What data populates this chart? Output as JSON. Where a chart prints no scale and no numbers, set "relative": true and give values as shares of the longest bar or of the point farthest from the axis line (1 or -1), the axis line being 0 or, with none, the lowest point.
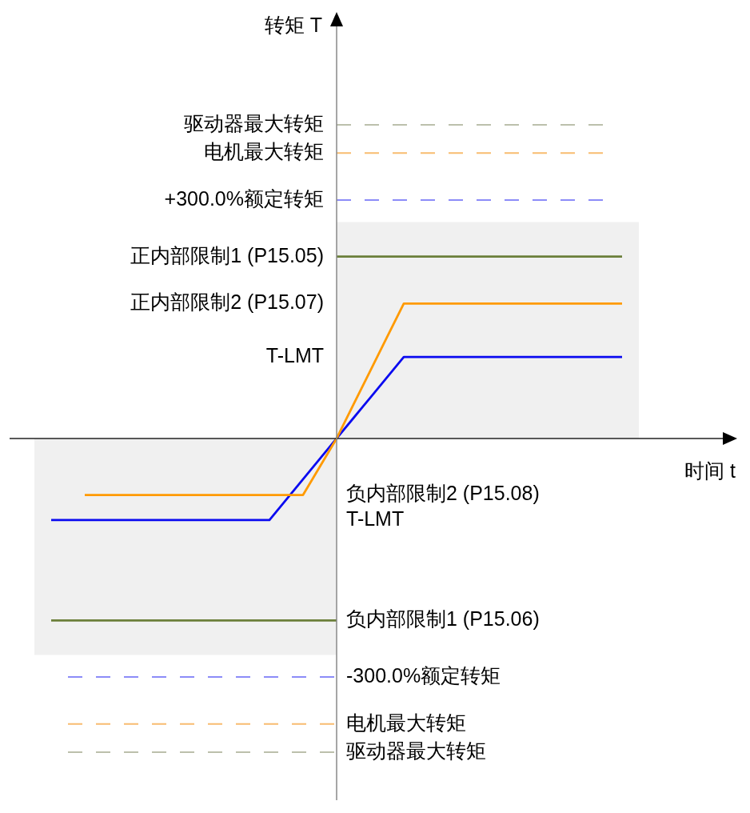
{
  "chart_data": {
    "type": "line",
    "relative": true,
    "xlabel": "时间 t",
    "ylabel": "转矩 T",
    "marker": "none",
    "categories": [
      null,
      null,
      null,
      null,
      null,
      null,
      null,
      null,
      null,
      null,
      null,
      null,
      null,
      null,
      null,
      null,
      null,
      null,
      null,
      null,
      null,
      null,
      null,
      null,
      null,
      null,
      null,
      null,
      null,
      null,
      null,
      null,
      null,
      null,
      null,
      null,
      null
    ],
    "series": [
      {
        "type": "area",
        "color": "#f0f0f0",
        "values": [
          null,
          null,
          null,
          null,
          null,
          null,
          null,
          null,
          null,
          null,
          null,
          null,
          null,
          null,
          null,
          null,
          null,
          null,
          0.69,
          0.69,
          0.69,
          0.69,
          0.69,
          0.69,
          0.69,
          0.69,
          0.69,
          0.69,
          0.69,
          0.69,
          0.69,
          0.69,
          0.69,
          0.69,
          0.69,
          0.69,
          0.69
        ]
      },
      {
        "type": "area",
        "color": "#f0f0f0",
        "values": [
          -0.69,
          -0.69,
          -0.69,
          -0.69,
          -0.69,
          -0.69,
          -0.69,
          -0.69,
          -0.69,
          -0.69,
          -0.69,
          -0.69,
          -0.69,
          -0.69,
          -0.69,
          -0.69,
          -0.69,
          -0.69,
          -0.69,
          null,
          null,
          null,
          null,
          null,
          null,
          null,
          null,
          null,
          null,
          null,
          null,
          null,
          null,
          null,
          null,
          null,
          null
        ]
      },
      {
        "name": "驱动器最大转矩",
        "color": "#bcc0ac",
        "line_style": "dashed",
        "values": [
          null,
          null,
          null,
          null,
          null,
          null,
          null,
          null,
          null,
          null,
          null,
          null,
          null,
          null,
          null,
          null,
          null,
          null,
          1,
          1,
          1,
          1,
          1,
          1,
          1,
          1,
          1,
          1,
          1,
          1,
          1,
          1,
          1,
          1,
          1,
          null,
          null
        ]
      },
      {
        "name": "电机最大转矩",
        "color": "#f8bc70",
        "line_style": "dashed",
        "values": [
          null,
          null,
          null,
          null,
          null,
          null,
          null,
          null,
          null,
          null,
          null,
          null,
          null,
          null,
          null,
          null,
          null,
          null,
          0.91,
          0.91,
          0.91,
          0.91,
          0.91,
          0.91,
          0.91,
          0.91,
          0.91,
          0.91,
          0.91,
          0.91,
          0.91,
          0.91,
          0.91,
          0.91,
          0.91,
          null,
          null
        ]
      },
      {
        "name": "+300.0%额定转矩",
        "color": "#8c8cf8",
        "line_style": "dashed",
        "values": [
          null,
          null,
          null,
          null,
          null,
          null,
          null,
          null,
          null,
          null,
          null,
          null,
          null,
          null,
          null,
          null,
          null,
          null,
          0.76,
          0.76,
          0.76,
          0.76,
          0.76,
          0.76,
          0.76,
          0.76,
          0.76,
          0.76,
          0.76,
          0.76,
          0.76,
          0.76,
          0.76,
          0.76,
          0.76,
          null,
          null
        ]
      },
      {
        "name": "正内部限制1 (P15.05)",
        "color": "#6b7f3a",
        "values": [
          null,
          null,
          null,
          null,
          null,
          null,
          null,
          null,
          null,
          null,
          null,
          null,
          null,
          null,
          null,
          null,
          null,
          null,
          0.58,
          0.58,
          0.58,
          0.58,
          0.58,
          0.58,
          0.58,
          0.58,
          0.58,
          0.58,
          0.58,
          0.58,
          0.58,
          0.58,
          0.58,
          0.58,
          0.58,
          0.58,
          null
        ]
      },
      {
        "color": "#ff9a00",
        "values": [
          null,
          null,
          null,
          -0.18,
          -0.18,
          -0.18,
          -0.18,
          -0.18,
          -0.18,
          -0.18,
          -0.18,
          -0.18,
          -0.18,
          -0.18,
          -0.18,
          -0.18,
          -0.18,
          -0.09,
          0,
          0.108,
          0.215,
          0.323,
          0.43,
          0.43,
          0.43,
          0.43,
          0.43,
          0.43,
          0.43,
          0.43,
          0.43,
          0.43,
          0.43,
          0.43,
          0.43,
          0.43,
          null
        ]
      },
      {
        "color": "#0a0af0",
        "values": [
          null,
          -0.26,
          -0.26,
          -0.26,
          -0.26,
          -0.26,
          -0.26,
          -0.26,
          -0.26,
          -0.26,
          -0.26,
          -0.26,
          -0.26,
          -0.26,
          -0.26,
          -0.195,
          -0.13,
          -0.065,
          0,
          0.065,
          0.13,
          0.195,
          0.26,
          0.26,
          0.26,
          0.26,
          0.26,
          0.26,
          0.26,
          0.26,
          0.26,
          0.26,
          0.26,
          0.26,
          0.26,
          0.26,
          null
        ]
      },
      {
        "name": "负内部限制1 (P15.06)",
        "color": "#6b7f3a",
        "values": [
          null,
          -0.58,
          -0.58,
          -0.58,
          -0.58,
          -0.58,
          -0.58,
          -0.58,
          -0.58,
          -0.58,
          -0.58,
          -0.58,
          -0.58,
          -0.58,
          -0.58,
          -0.58,
          -0.58,
          -0.58,
          -0.58,
          null,
          null,
          null,
          null,
          null,
          null,
          null,
          null,
          null,
          null,
          null,
          null,
          null,
          null,
          null,
          null,
          null,
          null
        ]
      },
      {
        "name": "-300.0%额定转矩",
        "color": "#8c8cf8",
        "line_style": "dashed",
        "values": [
          null,
          null,
          -0.76,
          -0.76,
          -0.76,
          -0.76,
          -0.76,
          -0.76,
          -0.76,
          -0.76,
          -0.76,
          -0.76,
          -0.76,
          -0.76,
          -0.76,
          -0.76,
          -0.76,
          -0.76,
          -0.76,
          null,
          null,
          null,
          null,
          null,
          null,
          null,
          null,
          null,
          null,
          null,
          null,
          null,
          null,
          null,
          null,
          null,
          null
        ]
      },
      {
        "name": "电机最大转矩",
        "color": "#f8bc70",
        "line_style": "dashed",
        "values": [
          null,
          null,
          -0.91,
          -0.91,
          -0.91,
          -0.91,
          -0.91,
          -0.91,
          -0.91,
          -0.91,
          -0.91,
          -0.91,
          -0.91,
          -0.91,
          -0.91,
          -0.91,
          -0.91,
          -0.91,
          -0.91,
          null,
          null,
          null,
          null,
          null,
          null,
          null,
          null,
          null,
          null,
          null,
          null,
          null,
          null,
          null,
          null,
          null,
          null
        ]
      },
      {
        "name": "驱动器最大转矩",
        "color": "#bcc0ac",
        "line_style": "dashed",
        "values": [
          null,
          null,
          -1,
          -1,
          -1,
          -1,
          -1,
          -1,
          -1,
          -1,
          -1,
          -1,
          -1,
          -1,
          -1,
          -1,
          -1,
          -1,
          -1,
          null,
          null,
          null,
          null,
          null,
          null,
          null,
          null,
          null,
          null,
          null,
          null,
          null,
          null,
          null,
          null,
          null,
          null
        ]
      }
    ],
    "annotations": [
      "正内部限制2 (P15.07)",
      "T-LMT",
      "负内部限制2 (P15.08)",
      "T-LMT"
    ]
  }
}
